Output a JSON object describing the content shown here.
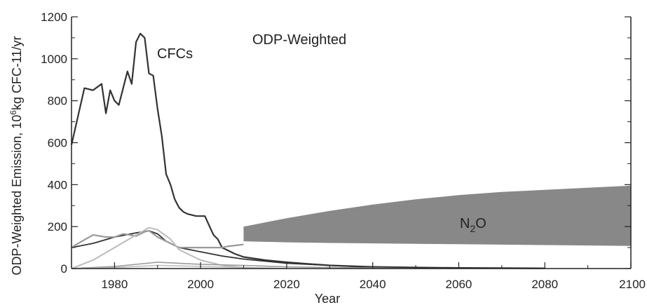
{
  "chart_data": {
    "type": "line",
    "title": "",
    "xlabel": "Year",
    "ylabel_main": "ODP-Weighted Emission, 10",
    "ylabel_exp": "6",
    "ylabel_rest": "kg CFC-11/yr",
    "xlim": [
      1970,
      2100
    ],
    "ylim": [
      0,
      1200
    ],
    "x_ticks": [
      1980,
      2000,
      2020,
      2040,
      2060,
      2080,
      2100
    ],
    "y_ticks": [
      0,
      200,
      400,
      600,
      800,
      1000,
      1200
    ],
    "grid": false,
    "legend": "none",
    "annotations": {
      "panel_label": "ODP-Weighted",
      "cfc_label": "CFCs",
      "n2o_label_main": "N",
      "n2o_label_sub": "2",
      "n2o_label_end": "O"
    },
    "colors": {
      "cfc": "#333333",
      "hcfc": "#999999",
      "light": "#bbbbbb",
      "n2o_band": "#888888",
      "axis": "#222222"
    },
    "series": [
      {
        "name": "CFCs",
        "x": [
          1970,
          1973,
          1975,
          1977,
          1978,
          1979,
          1980,
          1981,
          1982,
          1983,
          1984,
          1985,
          1986,
          1987,
          1988,
          1989,
          1990,
          1991,
          1992,
          1993,
          1994,
          1995,
          1996,
          1997,
          1998,
          1999,
          2000,
          2001,
          2002,
          2003,
          2004,
          2005,
          2006,
          2008,
          2010,
          2015,
          2020,
          2025,
          2030,
          2040,
          2050,
          2060,
          2070,
          2080
        ],
        "y": [
          590,
          860,
          850,
          880,
          740,
          850,
          800,
          780,
          860,
          940,
          880,
          1080,
          1120,
          1100,
          930,
          920,
          760,
          630,
          450,
          400,
          330,
          290,
          270,
          260,
          255,
          250,
          250,
          250,
          205,
          160,
          140,
          100,
          90,
          70,
          55,
          40,
          30,
          22,
          15,
          8,
          5,
          3,
          2,
          1
        ]
      },
      {
        "name": "",
        "x": [
          1970,
          1975,
          1980,
          1985,
          1988,
          1990,
          1992,
          1995,
          2000,
          2005,
          2010,
          2015,
          2020,
          2030,
          2040
        ],
        "y": [
          100,
          120,
          150,
          170,
          180,
          165,
          130,
          100,
          80,
          60,
          45,
          35,
          25,
          15,
          5
        ]
      },
      {
        "name": "",
        "x": [
          1970,
          1972,
          1975,
          1978,
          1980,
          1982,
          1985,
          1987,
          1988,
          1990,
          1993,
          1995,
          2000,
          2005,
          2006,
          2008,
          2010
        ],
        "y": [
          100,
          125,
          160,
          150,
          150,
          165,
          155,
          175,
          180,
          150,
          120,
          100,
          100,
          100,
          105,
          110,
          115
        ]
      },
      {
        "name": "",
        "x": [
          1970,
          1975,
          1980,
          1985,
          1988,
          1990,
          1993,
          1995,
          2000,
          2005,
          2010,
          2015
        ],
        "y": [
          0,
          40,
          100,
          160,
          195,
          185,
          140,
          90,
          40,
          15,
          5,
          0
        ]
      },
      {
        "name": "",
        "x": [
          1970,
          1980,
          1990,
          2000,
          2010,
          2020,
          2030,
          2040,
          2050
        ],
        "y": [
          0,
          10,
          30,
          20,
          15,
          8,
          5,
          3,
          0
        ]
      },
      {
        "name": "",
        "x": [
          1970,
          1980,
          1990,
          2000,
          2010,
          2020
        ],
        "y": [
          0,
          5,
          15,
          10,
          5,
          0
        ]
      }
    ],
    "band": {
      "name": "N2O",
      "x": [
        2010,
        2020,
        2030,
        2040,
        2050,
        2060,
        2070,
        2080,
        2090,
        2100
      ],
      "upper": [
        200,
        240,
        275,
        305,
        330,
        350,
        365,
        375,
        385,
        395
      ],
      "lower": [
        130,
        125,
        122,
        120,
        118,
        116,
        114,
        112,
        110,
        108
      ]
    }
  }
}
